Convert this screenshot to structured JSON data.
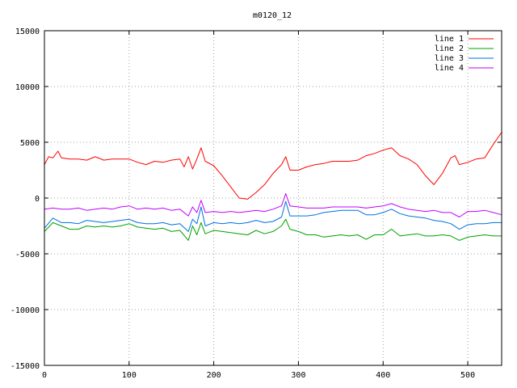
{
  "chart_data": {
    "type": "line",
    "title": "m0120_12",
    "xlabel": "",
    "ylabel": "",
    "xlim": [
      0,
      540
    ],
    "ylim": [
      -15000,
      15000
    ],
    "x_ticks": [
      0,
      100,
      200,
      300,
      400,
      500
    ],
    "y_ticks": [
      -15000,
      -10000,
      -5000,
      0,
      5000,
      10000,
      15000
    ],
    "grid": true,
    "legend_position": "top-right",
    "series": [
      {
        "name": "line 1",
        "color": "#ff0000",
        "points": [
          [
            0,
            3000
          ],
          [
            5,
            3700
          ],
          [
            10,
            3600
          ],
          [
            16,
            4200
          ],
          [
            20,
            3600
          ],
          [
            30,
            3500
          ],
          [
            40,
            3500
          ],
          [
            50,
            3400
          ],
          [
            60,
            3700
          ],
          [
            70,
            3400
          ],
          [
            80,
            3500
          ],
          [
            90,
            3500
          ],
          [
            100,
            3500
          ],
          [
            110,
            3200
          ],
          [
            120,
            3000
          ],
          [
            130,
            3300
          ],
          [
            140,
            3200
          ],
          [
            150,
            3400
          ],
          [
            160,
            3500
          ],
          [
            165,
            2800
          ],
          [
            170,
            3700
          ],
          [
            175,
            2600
          ],
          [
            180,
            3500
          ],
          [
            185,
            4500
          ],
          [
            190,
            3300
          ],
          [
            200,
            2900
          ],
          [
            210,
            2000
          ],
          [
            220,
            1000
          ],
          [
            230,
            0
          ],
          [
            240,
            -100
          ],
          [
            250,
            500
          ],
          [
            260,
            1200
          ],
          [
            270,
            2200
          ],
          [
            280,
            3000
          ],
          [
            285,
            3700
          ],
          [
            290,
            2500
          ],
          [
            300,
            2500
          ],
          [
            310,
            2800
          ],
          [
            320,
            3000
          ],
          [
            330,
            3100
          ],
          [
            340,
            3300
          ],
          [
            350,
            3300
          ],
          [
            360,
            3300
          ],
          [
            370,
            3400
          ],
          [
            380,
            3800
          ],
          [
            390,
            4000
          ],
          [
            400,
            4300
          ],
          [
            410,
            4500
          ],
          [
            420,
            3800
          ],
          [
            430,
            3500
          ],
          [
            440,
            3000
          ],
          [
            450,
            2000
          ],
          [
            460,
            1200
          ],
          [
            470,
            2200
          ],
          [
            480,
            3600
          ],
          [
            485,
            3800
          ],
          [
            490,
            3000
          ],
          [
            500,
            3200
          ],
          [
            510,
            3500
          ],
          [
            520,
            3600
          ],
          [
            530,
            4800
          ],
          [
            540,
            5900
          ]
        ]
      },
      {
        "name": "line 2",
        "color": "#00a000",
        "points": [
          [
            0,
            -3000
          ],
          [
            10,
            -2200
          ],
          [
            20,
            -2500
          ],
          [
            30,
            -2800
          ],
          [
            40,
            -2800
          ],
          [
            50,
            -2500
          ],
          [
            60,
            -2600
          ],
          [
            70,
            -2500
          ],
          [
            80,
            -2600
          ],
          [
            90,
            -2500
          ],
          [
            100,
            -2300
          ],
          [
            110,
            -2600
          ],
          [
            120,
            -2700
          ],
          [
            130,
            -2800
          ],
          [
            140,
            -2700
          ],
          [
            150,
            -3000
          ],
          [
            160,
            -2900
          ],
          [
            170,
            -3800
          ],
          [
            175,
            -2500
          ],
          [
            180,
            -3300
          ],
          [
            185,
            -2200
          ],
          [
            190,
            -3200
          ],
          [
            200,
            -2900
          ],
          [
            210,
            -3000
          ],
          [
            220,
            -3100
          ],
          [
            230,
            -3200
          ],
          [
            240,
            -3300
          ],
          [
            250,
            -2900
          ],
          [
            260,
            -3200
          ],
          [
            270,
            -3000
          ],
          [
            280,
            -2500
          ],
          [
            285,
            -1900
          ],
          [
            290,
            -2800
          ],
          [
            300,
            -3000
          ],
          [
            310,
            -3300
          ],
          [
            320,
            -3300
          ],
          [
            330,
            -3500
          ],
          [
            340,
            -3400
          ],
          [
            350,
            -3300
          ],
          [
            360,
            -3400
          ],
          [
            370,
            -3300
          ],
          [
            380,
            -3700
          ],
          [
            390,
            -3300
          ],
          [
            400,
            -3300
          ],
          [
            410,
            -2800
          ],
          [
            420,
            -3400
          ],
          [
            430,
            -3300
          ],
          [
            440,
            -3200
          ],
          [
            450,
            -3400
          ],
          [
            460,
            -3400
          ],
          [
            470,
            -3300
          ],
          [
            480,
            -3400
          ],
          [
            490,
            -3800
          ],
          [
            500,
            -3500
          ],
          [
            510,
            -3400
          ],
          [
            520,
            -3300
          ],
          [
            530,
            -3400
          ],
          [
            540,
            -3400
          ]
        ]
      },
      {
        "name": "line 3",
        "color": "#0070e0",
        "points": [
          [
            0,
            -2700
          ],
          [
            10,
            -1800
          ],
          [
            20,
            -2200
          ],
          [
            30,
            -2200
          ],
          [
            40,
            -2300
          ],
          [
            50,
            -2000
          ],
          [
            60,
            -2100
          ],
          [
            70,
            -2200
          ],
          [
            80,
            -2100
          ],
          [
            90,
            -2000
          ],
          [
            100,
            -1900
          ],
          [
            110,
            -2200
          ],
          [
            120,
            -2300
          ],
          [
            130,
            -2300
          ],
          [
            140,
            -2200
          ],
          [
            150,
            -2400
          ],
          [
            160,
            -2300
          ],
          [
            170,
            -3000
          ],
          [
            175,
            -1900
          ],
          [
            180,
            -2300
          ],
          [
            185,
            -800
          ],
          [
            190,
            -2500
          ],
          [
            200,
            -2200
          ],
          [
            210,
            -2300
          ],
          [
            220,
            -2200
          ],
          [
            230,
            -2300
          ],
          [
            240,
            -2200
          ],
          [
            250,
            -2000
          ],
          [
            260,
            -2200
          ],
          [
            270,
            -2100
          ],
          [
            280,
            -1700
          ],
          [
            285,
            -300
          ],
          [
            290,
            -1600
          ],
          [
            300,
            -1600
          ],
          [
            310,
            -1600
          ],
          [
            320,
            -1500
          ],
          [
            330,
            -1300
          ],
          [
            340,
            -1200
          ],
          [
            350,
            -1100
          ],
          [
            360,
            -1100
          ],
          [
            370,
            -1100
          ],
          [
            380,
            -1500
          ],
          [
            390,
            -1500
          ],
          [
            400,
            -1300
          ],
          [
            410,
            -1000
          ],
          [
            420,
            -1400
          ],
          [
            430,
            -1600
          ],
          [
            440,
            -1700
          ],
          [
            450,
            -1800
          ],
          [
            460,
            -2000
          ],
          [
            470,
            -2100
          ],
          [
            480,
            -2300
          ],
          [
            490,
            -2800
          ],
          [
            500,
            -2400
          ],
          [
            510,
            -2300
          ],
          [
            520,
            -2300
          ],
          [
            530,
            -2200
          ],
          [
            540,
            -2200
          ]
        ]
      },
      {
        "name": "line 4",
        "color": "#c000ff",
        "points": [
          [
            0,
            -1000
          ],
          [
            10,
            -900
          ],
          [
            20,
            -1000
          ],
          [
            30,
            -1000
          ],
          [
            40,
            -900
          ],
          [
            50,
            -1100
          ],
          [
            60,
            -1000
          ],
          [
            70,
            -900
          ],
          [
            80,
            -1000
          ],
          [
            90,
            -800
          ],
          [
            100,
            -700
          ],
          [
            110,
            -1000
          ],
          [
            120,
            -900
          ],
          [
            130,
            -1000
          ],
          [
            140,
            -900
          ],
          [
            150,
            -1100
          ],
          [
            160,
            -1000
          ],
          [
            170,
            -1600
          ],
          [
            175,
            -800
          ],
          [
            180,
            -1300
          ],
          [
            185,
            -200
          ],
          [
            190,
            -1300
          ],
          [
            200,
            -1200
          ],
          [
            210,
            -1300
          ],
          [
            220,
            -1200
          ],
          [
            230,
            -1300
          ],
          [
            240,
            -1200
          ],
          [
            250,
            -1100
          ],
          [
            260,
            -1200
          ],
          [
            270,
            -1000
          ],
          [
            280,
            -700
          ],
          [
            285,
            400
          ],
          [
            290,
            -700
          ],
          [
            300,
            -800
          ],
          [
            310,
            -900
          ],
          [
            320,
            -900
          ],
          [
            330,
            -900
          ],
          [
            340,
            -800
          ],
          [
            350,
            -800
          ],
          [
            360,
            -800
          ],
          [
            370,
            -800
          ],
          [
            380,
            -900
          ],
          [
            390,
            -800
          ],
          [
            400,
            -700
          ],
          [
            410,
            -500
          ],
          [
            420,
            -800
          ],
          [
            430,
            -1000
          ],
          [
            440,
            -1100
          ],
          [
            450,
            -1200
          ],
          [
            460,
            -1100
          ],
          [
            470,
            -1300
          ],
          [
            480,
            -1300
          ],
          [
            490,
            -1700
          ],
          [
            500,
            -1200
          ],
          [
            510,
            -1200
          ],
          [
            520,
            -1100
          ],
          [
            530,
            -1300
          ],
          [
            540,
            -1500
          ]
        ]
      }
    ]
  }
}
